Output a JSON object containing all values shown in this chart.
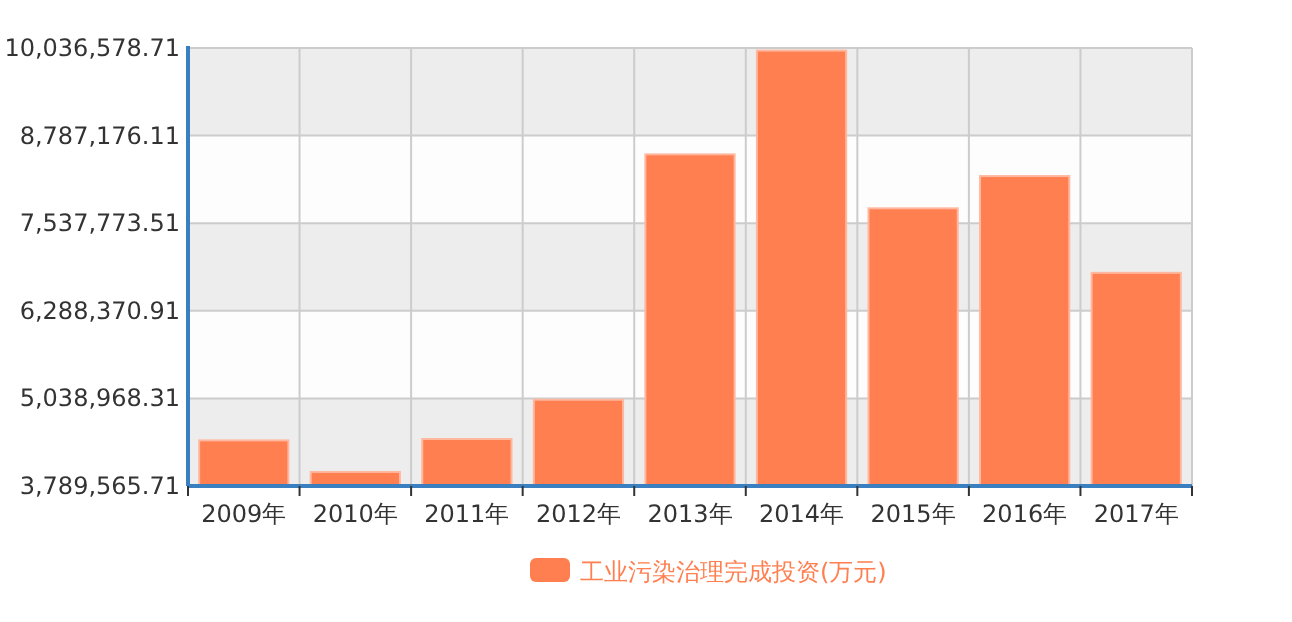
{
  "chart_data": {
    "type": "bar",
    "categories": [
      "2009年",
      "2010年",
      "2011年",
      "2012年",
      "2013年",
      "2014年",
      "2015年",
      "2016年",
      "2017年"
    ],
    "series": [
      {
        "name": "工业污染治理完成投资(万元)",
        "color": "#ff7f50",
        "values": [
          4440000,
          3990000,
          4460000,
          5020000,
          8520000,
          10000000,
          7750000,
          8210000,
          6830000
        ]
      }
    ],
    "ylim": [
      3789565.71,
      10036578.71
    ],
    "yticks": [
      {
        "value": 3789565.71,
        "label": "3,789,565.71"
      },
      {
        "value": 5038968.31,
        "label": "5,038,968.31"
      },
      {
        "value": 6288370.91,
        "label": "6,288,370.91"
      },
      {
        "value": 7537773.51,
        "label": "7,537,773.51"
      },
      {
        "value": 8787176.11,
        "label": "8,787,176.11"
      },
      {
        "value": 10036578.71,
        "label": "10,036,578.71"
      }
    ],
    "grid": true,
    "legend": "bottom"
  }
}
